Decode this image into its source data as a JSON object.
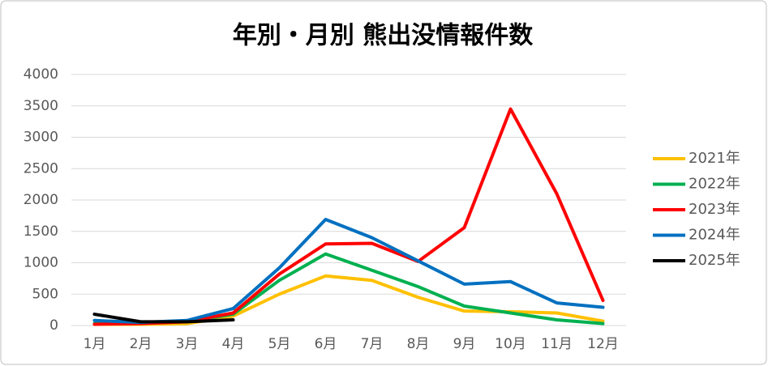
{
  "chart_data": {
    "type": "line",
    "title": "年別・月別 熊出没情報件数",
    "categories": [
      "1月",
      "2月",
      "3月",
      "4月",
      "5月",
      "6月",
      "7月",
      "8月",
      "9月",
      "10月",
      "11月",
      "12月"
    ],
    "series": [
      {
        "name": "2021年",
        "color": "#ffc000",
        "values": [
          20,
          20,
          30,
          150,
          500,
          790,
          720,
          450,
          230,
          220,
          200,
          70
        ]
      },
      {
        "name": "2022年",
        "color": "#00b050",
        "values": [
          30,
          40,
          60,
          180,
          720,
          1140,
          880,
          620,
          310,
          200,
          90,
          30
        ]
      },
      {
        "name": "2023年",
        "color": "#ff0000",
        "values": [
          20,
          30,
          60,
          200,
          820,
          1300,
          1310,
          1020,
          1560,
          3450,
          2100,
          400
        ]
      },
      {
        "name": "2024年",
        "color": "#0070c0",
        "values": [
          80,
          50,
          80,
          270,
          920,
          1690,
          1400,
          1030,
          660,
          700,
          360,
          290
        ]
      },
      {
        "name": "2025年",
        "color": "#000000",
        "values": [
          180,
          60,
          60,
          90,
          null,
          null,
          null,
          null,
          null,
          null,
          null,
          null
        ]
      }
    ],
    "ylim": [
      0,
      4000
    ],
    "yticks": [
      0,
      500,
      1000,
      1500,
      2000,
      2500,
      3000,
      3500,
      4000
    ],
    "grid": true,
    "legend": "right"
  }
}
